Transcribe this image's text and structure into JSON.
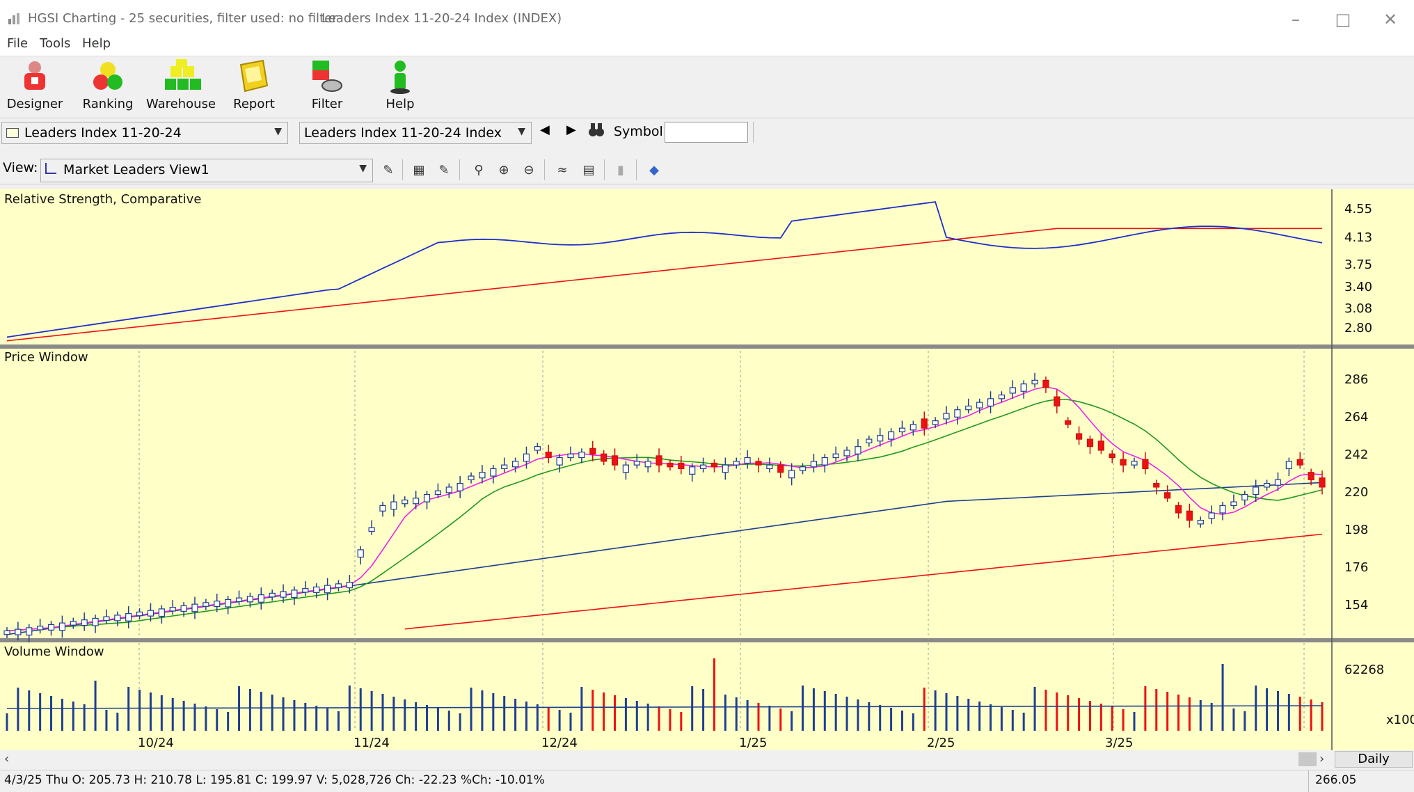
{
  "window": {
    "title": "HGSI Charting - 25 securities, filter used: no filter",
    "subtitle": "Leaders Index 11-20-24 Index (INDEX)"
  },
  "menu": [
    "File",
    "Tools",
    "Help"
  ],
  "toolbar": [
    {
      "label": "Designer",
      "icon": "designer-icon"
    },
    {
      "label": "Ranking",
      "icon": "ranking-icon"
    },
    {
      "label": "Warehouse",
      "icon": "warehouse-icon"
    },
    {
      "label": "Report",
      "icon": "report-icon"
    },
    {
      "label": "Filter",
      "icon": "filter-icon"
    },
    {
      "label": "Help",
      "icon": "help-icon"
    }
  ],
  "selectors": {
    "list_value": "Leaders Index 11-20-24",
    "security_value": "Leaders Index 11-20-24 Index",
    "symbol_label": "Symbol:",
    "symbol_value": "",
    "view_label": "View:",
    "view_value": "Market Leaders View1"
  },
  "panels": {
    "rs_title": "Relative Strength, Comparative",
    "price_title": "Price Window",
    "volume_title": "Volume Window"
  },
  "axes": {
    "rs_ticks": [
      "4.55",
      "4.13",
      "3.75",
      "3.40",
      "3.08",
      "2.80"
    ],
    "price_ticks": [
      "286",
      "264",
      "242",
      "220",
      "198",
      "176",
      "154"
    ],
    "volume_tick": "62268",
    "volume_mult": "x100",
    "date_labels": [
      "10/24",
      "11/24",
      "12/24",
      "1/25",
      "2/25",
      "3/25"
    ]
  },
  "period_label": "Daily",
  "status_text": "4/3/25 Thu O: 205.73 H: 210.78 L: 195.81 C: 199.97 V: 5,028,726 Ch: -22.23 %Ch: -10.01%",
  "status_value": "266.05",
  "colors": {
    "chart_bg": "#ffffc8",
    "rs_line": "#1f2ecc",
    "up_candle": "#ffffff",
    "down_candle": "#ee1111",
    "ma_short": "#ee22ee",
    "ma_mid": "#229922",
    "ma_long": "#1f3f8f",
    "ma_200": "#ee1111"
  },
  "chart_data": {
    "type": "candlestick",
    "rs_range": [
      2.65,
      4.75
    ],
    "price_range": [
      140,
      296
    ],
    "last_bar": {
      "date": "4/3/25",
      "open": 205.73,
      "high": 210.78,
      "low": 195.81,
      "close": 199.97,
      "volume": 5028726
    }
  }
}
